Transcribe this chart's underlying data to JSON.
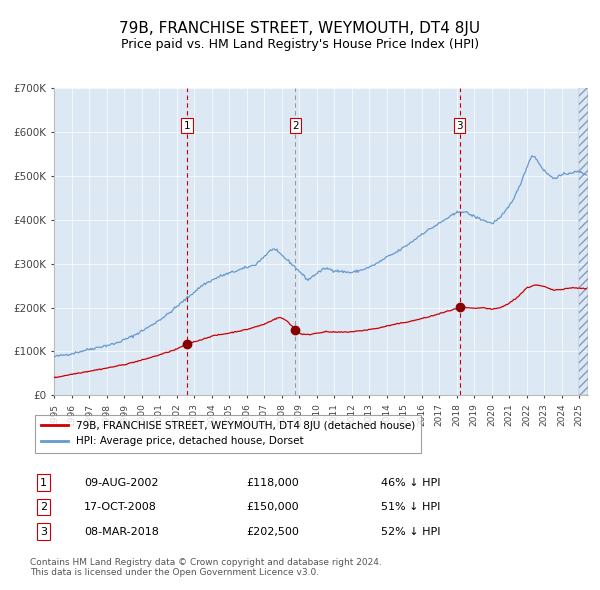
{
  "title": "79B, FRANCHISE STREET, WEYMOUTH, DT4 8JU",
  "subtitle": "Price paid vs. HM Land Registry's House Price Index (HPI)",
  "title_fontsize": 11,
  "subtitle_fontsize": 9,
  "ylim": [
    0,
    700000
  ],
  "yticks": [
    0,
    100000,
    200000,
    300000,
    400000,
    500000,
    600000,
    700000
  ],
  "ytick_labels": [
    "£0",
    "£100K",
    "£200K",
    "£300K",
    "£400K",
    "£500K",
    "£600K",
    "£700K"
  ],
  "plot_bg_color": "#dce9f5",
  "hpi_line_color": "#6699cc",
  "price_line_color": "#cc0000",
  "sale1": {
    "date_num": 2002.6,
    "price": 118000,
    "label": "1"
  },
  "sale2": {
    "date_num": 2008.79,
    "price": 150000,
    "label": "2"
  },
  "sale3": {
    "date_num": 2018.18,
    "price": 202500,
    "label": "3"
  },
  "legend_text1": "79B, FRANCHISE STREET, WEYMOUTH, DT4 8JU (detached house)",
  "legend_text2": "HPI: Average price, detached house, Dorset",
  "table_rows": [
    {
      "num": "1",
      "date": "09-AUG-2002",
      "price": "£118,000",
      "pct": "46% ↓ HPI"
    },
    {
      "num": "2",
      "date": "17-OCT-2008",
      "price": "£150,000",
      "pct": "51% ↓ HPI"
    },
    {
      "num": "3",
      "date": "08-MAR-2018",
      "price": "£202,500",
      "pct": "52% ↓ HPI"
    }
  ],
  "footer": "Contains HM Land Registry data © Crown copyright and database right 2024.\nThis data is licensed under the Open Government Licence v3.0.",
  "xmin": 1995.0,
  "xmax": 2025.5
}
